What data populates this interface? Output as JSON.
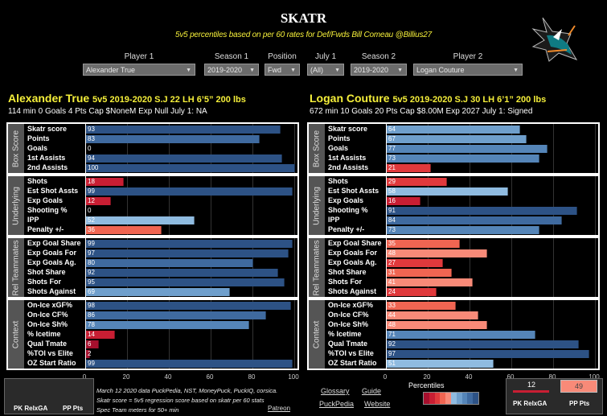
{
  "header": {
    "title": "SKATR",
    "subtitle": "5v5 percentiles based on per 60 rates for Def/Fwds  Bill Comeau @Billius27",
    "logo": "sharks-logo"
  },
  "filters": [
    {
      "label": "Player 1",
      "value": "Alexander True"
    },
    {
      "label": "Season 1",
      "value": "2019-2020"
    },
    {
      "label": "Position",
      "value": "Fwd"
    },
    {
      "label": "July 1",
      "value": "(All)"
    },
    {
      "label": "Season 2",
      "value": "2019-2020"
    },
    {
      "label": "Player 2",
      "value": "Logan Couture"
    }
  ],
  "players": [
    {
      "name": "Alexander True",
      "meta": "5v5  2019-2020 S.J 22 LH 6’5” 200 lbs",
      "stats": "114 min  0 Goals  4 Pts Cap $NoneM  Exp Null  July 1: NA"
    },
    {
      "name": "Logan Couture",
      "meta": "5v5 2019-2020 S.J 30 LH 6’1” 200 lbs",
      "stats": "672 min 10 Goals  20 Pts   Cap $8.00M  Exp 2027 July 1: Signed"
    }
  ],
  "chart_data": [
    {
      "type": "bar",
      "title": "Alexander True percentiles",
      "orientation": "horizontal",
      "xlim": [
        0,
        100
      ],
      "x_ticks": [
        "0",
        "20",
        "40",
        "60",
        "80",
        "100"
      ],
      "grid": true,
      "groups": [
        {
          "name": "Box Score",
          "categories": [
            "Skatr score",
            "Points",
            "Goals",
            "1st Assists",
            "2nd Assists"
          ],
          "values": [
            93,
            83,
            0,
            94,
            100
          ]
        },
        {
          "name": "Underlying",
          "categories": [
            "Shots",
            "Est Shot Assts",
            "Exp Goals",
            "Shooting %",
            "IPP",
            "Penalty +/-"
          ],
          "values": [
            18,
            99,
            12,
            0,
            52,
            36
          ]
        },
        {
          "name": "Rel Teammates",
          "categories": [
            "Exp Goal Share",
            "Exp Goals For",
            "Exp Goals Ag.",
            "Shot Share",
            "Shots For",
            "Shots Against"
          ],
          "values": [
            99,
            97,
            80,
            92,
            95,
            69
          ]
        },
        {
          "name": "Context",
          "categories": [
            "On-Ice xGF%",
            "On-Ice CF%",
            "On-Ice Sh%",
            "% Icetime",
            "Qual Tmate",
            "%TOI vs Elite",
            "OZ Start Ratio"
          ],
          "values": [
            98,
            86,
            78,
            14,
            6,
            2,
            99
          ]
        }
      ]
    },
    {
      "type": "bar",
      "title": "Logan Couture percentiles",
      "orientation": "horizontal",
      "xlim": [
        0,
        100
      ],
      "x_ticks": [
        "0",
        "20",
        "40",
        "60",
        "80",
        "100"
      ],
      "grid": true,
      "groups": [
        {
          "name": "Box Score",
          "categories": [
            "Skatr score",
            "Points",
            "Goals",
            "1st Assists",
            "2nd Assists"
          ],
          "values": [
            64,
            67,
            77,
            73,
            21
          ]
        },
        {
          "name": "Underlying",
          "categories": [
            "Shots",
            "Est Shot Assts",
            "Exp Goals",
            "Shooting %",
            "IPP",
            "Penalty +/-"
          ],
          "values": [
            29,
            58,
            16,
            91,
            84,
            73
          ]
        },
        {
          "name": "Rel Teammates",
          "categories": [
            "Exp Goal Share",
            "Exp Goals For",
            "Exp Goals Ag.",
            "Shot Share",
            "Shots For",
            "Shots Against"
          ],
          "values": [
            35,
            48,
            27,
            31,
            41,
            24
          ]
        },
        {
          "name": "Context",
          "categories": [
            "On-Ice xGF%",
            "On-Ice CF%",
            "On-Ice Sh%",
            "% Icetime",
            "Qual Tmate",
            "%TOI vs Elite",
            "OZ Start Ratio"
          ],
          "values": [
            33,
            44,
            48,
            71,
            92,
            97,
            51
          ]
        }
      ]
    }
  ],
  "color_scale": [
    "#a50f2d",
    "#c81e33",
    "#e0393c",
    "#f06552",
    "#f88a78",
    "#8fbbe0",
    "#6f9fcc",
    "#5585b8",
    "#3f6a9f",
    "#2d5285"
  ],
  "special_teams": [
    {
      "labels": [
        "PK RelxGA",
        "PP Pts"
      ],
      "values": [
        null,
        null
      ]
    },
    {
      "labels": [
        "PK RelxGA",
        "PP Pts"
      ],
      "values": [
        "12",
        "49"
      ]
    }
  ],
  "footer": {
    "notes": [
      "March  12 2020  data PuckPedia, NST, MoneyPuck, PuckIQ, corsica.",
      "Skatr  score  = 5v5  regression score based on skatr per 60 stats",
      "Spec Team meters for  50+ min"
    ],
    "patreon": "Patreon",
    "links": [
      "Glossary",
      "Guide",
      "PuckPedia",
      "Website"
    ],
    "legend_title": "Percentiles"
  }
}
